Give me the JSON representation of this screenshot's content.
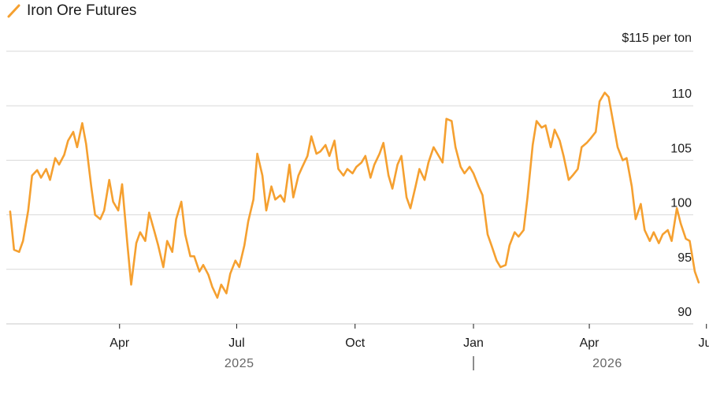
{
  "chart_data": {
    "type": "line",
    "legend": {
      "label": "Iron Ore Futures",
      "position": "top-left"
    },
    "series": [
      {
        "name": "Iron Ore Futures",
        "color": "#f5a030",
        "points": [
          [
            "2025-01-06",
            100.3
          ],
          [
            "2025-01-09",
            96.8
          ],
          [
            "2025-01-13",
            96.6
          ],
          [
            "2025-01-16",
            97.6
          ],
          [
            "2025-01-20",
            100.4
          ],
          [
            "2025-01-23",
            103.6
          ],
          [
            "2025-01-27",
            104.1
          ],
          [
            "2025-01-30",
            103.4
          ],
          [
            "2025-02-03",
            104.2
          ],
          [
            "2025-02-06",
            103.2
          ],
          [
            "2025-02-10",
            105.2
          ],
          [
            "2025-02-13",
            104.6
          ],
          [
            "2025-02-17",
            105.5
          ],
          [
            "2025-02-20",
            106.8
          ],
          [
            "2025-02-24",
            107.6
          ],
          [
            "2025-02-27",
            106.2
          ],
          [
            "2025-03-03",
            108.4
          ],
          [
            "2025-03-06",
            106.5
          ],
          [
            "2025-03-10",
            102.6
          ],
          [
            "2025-03-13",
            100.0
          ],
          [
            "2025-03-17",
            99.6
          ],
          [
            "2025-03-20",
            100.4
          ],
          [
            "2025-03-24",
            103.2
          ],
          [
            "2025-03-27",
            101.2
          ],
          [
            "2025-03-31",
            100.4
          ],
          [
            "2025-04-03",
            102.8
          ],
          [
            "2025-04-07",
            97.4
          ],
          [
            "2025-04-10",
            93.6
          ],
          [
            "2025-04-14",
            97.4
          ],
          [
            "2025-04-17",
            98.4
          ],
          [
            "2025-04-21",
            97.6
          ],
          [
            "2025-04-24",
            100.2
          ],
          [
            "2025-04-28",
            98.5
          ],
          [
            "2025-05-01",
            97.2
          ],
          [
            "2025-05-05",
            95.2
          ],
          [
            "2025-05-08",
            97.6
          ],
          [
            "2025-05-12",
            96.6
          ],
          [
            "2025-05-15",
            99.6
          ],
          [
            "2025-05-19",
            101.2
          ],
          [
            "2025-05-22",
            98.2
          ],
          [
            "2025-05-26",
            96.2
          ],
          [
            "2025-05-29",
            96.2
          ],
          [
            "2025-06-02",
            94.8
          ],
          [
            "2025-06-05",
            95.4
          ],
          [
            "2025-06-09",
            94.5
          ],
          [
            "2025-06-12",
            93.4
          ],
          [
            "2025-06-16",
            92.4
          ],
          [
            "2025-06-19",
            93.6
          ],
          [
            "2025-06-23",
            92.8
          ],
          [
            "2025-06-26",
            94.6
          ],
          [
            "2025-06-30",
            95.8
          ],
          [
            "2025-07-03",
            95.2
          ],
          [
            "2025-07-07",
            97.2
          ],
          [
            "2025-07-10",
            99.4
          ],
          [
            "2025-07-14",
            101.4
          ],
          [
            "2025-07-17",
            105.6
          ],
          [
            "2025-07-21",
            103.6
          ],
          [
            "2025-07-24",
            100.4
          ],
          [
            "2025-07-28",
            102.6
          ],
          [
            "2025-07-31",
            101.4
          ],
          [
            "2025-08-04",
            101.8
          ],
          [
            "2025-08-07",
            101.2
          ],
          [
            "2025-08-11",
            104.6
          ],
          [
            "2025-08-14",
            101.6
          ],
          [
            "2025-08-18",
            103.6
          ],
          [
            "2025-08-21",
            104.4
          ],
          [
            "2025-08-25",
            105.4
          ],
          [
            "2025-08-28",
            107.2
          ],
          [
            "2025-09-01",
            105.6
          ],
          [
            "2025-09-04",
            105.8
          ],
          [
            "2025-09-08",
            106.4
          ],
          [
            "2025-09-11",
            105.4
          ],
          [
            "2025-09-15",
            106.8
          ],
          [
            "2025-09-18",
            104.2
          ],
          [
            "2025-09-22",
            103.6
          ],
          [
            "2025-09-25",
            104.2
          ],
          [
            "2025-09-29",
            103.8
          ],
          [
            "2025-10-02",
            104.4
          ],
          [
            "2025-10-06",
            104.8
          ],
          [
            "2025-10-09",
            105.4
          ],
          [
            "2025-10-13",
            103.4
          ],
          [
            "2025-10-16",
            104.6
          ],
          [
            "2025-10-20",
            105.6
          ],
          [
            "2025-10-23",
            106.6
          ],
          [
            "2025-10-27",
            103.6
          ],
          [
            "2025-10-30",
            102.4
          ],
          [
            "2025-11-03",
            104.6
          ],
          [
            "2025-11-06",
            105.4
          ],
          [
            "2025-11-10",
            101.6
          ],
          [
            "2025-11-13",
            100.6
          ],
          [
            "2025-11-17",
            102.6
          ],
          [
            "2025-11-20",
            104.2
          ],
          [
            "2025-11-24",
            103.2
          ],
          [
            "2025-11-27",
            104.8
          ],
          [
            "2025-12-01",
            106.2
          ],
          [
            "2025-12-04",
            105.6
          ],
          [
            "2025-12-08",
            104.8
          ],
          [
            "2025-12-11",
            108.8
          ],
          [
            "2025-12-15",
            108.6
          ],
          [
            "2025-12-18",
            106.2
          ],
          [
            "2025-12-22",
            104.4
          ],
          [
            "2025-12-25",
            103.8
          ],
          [
            "2025-12-29",
            104.4
          ],
          [
            "2026-01-01",
            103.8
          ],
          [
            "2026-01-05",
            102.6
          ],
          [
            "2026-01-08",
            101.8
          ],
          [
            "2026-01-12",
            98.2
          ],
          [
            "2026-01-15",
            97.2
          ],
          [
            "2026-01-19",
            95.8
          ],
          [
            "2026-01-22",
            95.2
          ],
          [
            "2026-01-26",
            95.4
          ],
          [
            "2026-01-29",
            97.2
          ],
          [
            "2026-02-02",
            98.4
          ],
          [
            "2026-02-05",
            98.0
          ],
          [
            "2026-02-09",
            98.6
          ],
          [
            "2026-02-12",
            101.6
          ],
          [
            "2026-02-16",
            106.4
          ],
          [
            "2026-02-19",
            108.6
          ],
          [
            "2026-02-23",
            108.0
          ],
          [
            "2026-02-26",
            108.2
          ],
          [
            "2026-03-02",
            106.2
          ],
          [
            "2026-03-05",
            107.8
          ],
          [
            "2026-03-09",
            106.8
          ],
          [
            "2026-03-12",
            105.4
          ],
          [
            "2026-03-16",
            103.2
          ],
          [
            "2026-03-19",
            103.6
          ],
          [
            "2026-03-23",
            104.2
          ],
          [
            "2026-03-26",
            106.2
          ],
          [
            "2026-03-30",
            106.6
          ],
          [
            "2026-04-02",
            107.0
          ],
          [
            "2026-04-06",
            107.6
          ],
          [
            "2026-04-09",
            110.4
          ],
          [
            "2026-04-13",
            111.2
          ],
          [
            "2026-04-16",
            110.8
          ],
          [
            "2026-04-20",
            108.2
          ],
          [
            "2026-04-23",
            106.2
          ],
          [
            "2026-04-27",
            105.0
          ],
          [
            "2026-04-30",
            105.2
          ],
          [
            "2026-05-04",
            102.6
          ],
          [
            "2026-05-07",
            99.6
          ],
          [
            "2026-05-11",
            101.0
          ],
          [
            "2026-05-14",
            98.6
          ],
          [
            "2026-05-18",
            97.6
          ],
          [
            "2026-05-21",
            98.4
          ],
          [
            "2026-05-25",
            97.4
          ],
          [
            "2026-05-28",
            98.2
          ],
          [
            "2026-06-01",
            98.6
          ],
          [
            "2026-06-04",
            97.6
          ],
          [
            "2026-06-08",
            100.6
          ],
          [
            "2026-06-11",
            99.2
          ],
          [
            "2026-06-15",
            97.8
          ],
          [
            "2026-06-18",
            97.6
          ],
          [
            "2026-06-22",
            94.8
          ],
          [
            "2026-06-25",
            93.8
          ]
        ]
      }
    ],
    "y_axis": {
      "range": [
        90,
        115
      ],
      "ticks": [
        {
          "value": 115,
          "label": "$115 per ton"
        },
        {
          "value": 110,
          "label": "110"
        },
        {
          "value": 105,
          "label": "105"
        },
        {
          "value": 100,
          "label": "100"
        },
        {
          "value": 95,
          "label": "95"
        },
        {
          "value": 90,
          "label": "90"
        }
      ],
      "position": "right"
    },
    "x_axis": {
      "range": [
        "2025-01-03",
        "2026-07-03"
      ],
      "ticks": [
        {
          "date": "2025-04-01",
          "label": "Apr"
        },
        {
          "date": "2025-07-01",
          "label": "Jul"
        },
        {
          "date": "2025-10-01",
          "label": "Oct"
        },
        {
          "date": "2026-01-01",
          "label": "Jan"
        },
        {
          "date": "2026-04-01",
          "label": "Apr"
        },
        {
          "date": "2026-07-01",
          "label": "Jul"
        }
      ],
      "year_labels": [
        {
          "label": "2025"
        },
        {
          "label": "2026"
        }
      ]
    },
    "grid": "horizontal"
  }
}
